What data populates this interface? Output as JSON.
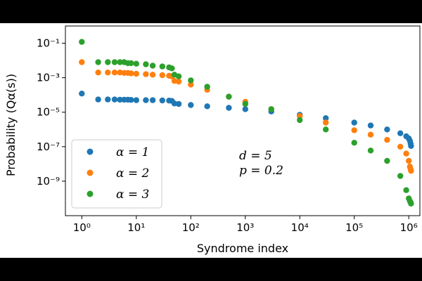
{
  "chart_data": {
    "type": "scatter",
    "xlabel": "Syndrome index",
    "ylabel": "Probability (Qα(s))",
    "x_scale": "log",
    "y_scale": "log",
    "xlim": [
      0.5,
      1600000
    ],
    "ylim": [
      1e-11,
      1.0
    ],
    "x_ticks": [
      {
        "value": 1,
        "label": "10⁰"
      },
      {
        "value": 10,
        "label": "10¹"
      },
      {
        "value": 100,
        "label": "10²"
      },
      {
        "value": 1000,
        "label": "10³"
      },
      {
        "value": 10000,
        "label": "10⁴"
      },
      {
        "value": 100000,
        "label": "10⁵"
      },
      {
        "value": 1000000,
        "label": "10⁶"
      }
    ],
    "y_ticks": [
      {
        "value": 0.1,
        "label": "10⁻¹"
      },
      {
        "value": 0.001,
        "label": "10⁻³"
      },
      {
        "value": 1e-05,
        "label": "10⁻⁵"
      },
      {
        "value": 1e-07,
        "label": "10⁻⁷"
      },
      {
        "value": 1e-09,
        "label": "10⁻⁹"
      }
    ],
    "grid": false,
    "legend_position": "lower-left",
    "annotation": [
      "d = 5",
      "p = 0.2"
    ],
    "series": [
      {
        "name": "α = 1",
        "color": "#1f77b4",
        "x": [
          1,
          2,
          3,
          4,
          5,
          6,
          7,
          8,
          10,
          15,
          20,
          30,
          40,
          45,
          50,
          60,
          100,
          200,
          500,
          1000,
          3000,
          10000,
          30000,
          100000,
          200000,
          400000,
          700000,
          900000,
          1000000,
          1050000,
          1080000,
          1100000
        ],
        "y": [
          0.00012,
          5.5e-05,
          5.5e-05,
          5.5e-05,
          5.3e-05,
          5.3e-05,
          5.3e-05,
          5.2e-05,
          5e-05,
          5e-05,
          5e-05,
          4.8e-05,
          4.7e-05,
          4.5e-05,
          3.2e-05,
          3e-05,
          2.6e-05,
          2.2e-05,
          1.8e-05,
          1.5e-05,
          1.1e-05,
          7e-06,
          4.5e-06,
          2.5e-06,
          1.7e-06,
          1e-06,
          6e-07,
          4e-07,
          3e-07,
          2.2e-07,
          1.5e-07,
          1.1e-07
        ]
      },
      {
        "name": "α = 2",
        "color": "#ff7f0e",
        "x": [
          1,
          2,
          3,
          4,
          5,
          6,
          7,
          8,
          10,
          15,
          20,
          30,
          40,
          45,
          50,
          60,
          100,
          200,
          500,
          1000,
          3000,
          10000,
          30000,
          100000,
          200000,
          400000,
          700000,
          900000,
          1000000,
          1050000,
          1080000,
          1100000
        ],
        "y": [
          0.008,
          0.002,
          0.002,
          0.002,
          0.002,
          0.0019,
          0.0019,
          0.0018,
          0.0017,
          0.0016,
          0.0015,
          0.0014,
          0.0013,
          0.0012,
          0.00065,
          0.0006,
          0.0004,
          0.0002,
          8e-05,
          4e-05,
          1.5e-05,
          6e-06,
          2.5e-06,
          9e-07,
          5e-07,
          2.5e-07,
          1e-07,
          4e-08,
          1.5e-08,
          7e-09,
          5e-09,
          4e-09
        ]
      },
      {
        "name": "α = 3",
        "color": "#2ca02c",
        "x": [
          1,
          2,
          3,
          4,
          5,
          6,
          7,
          8,
          10,
          15,
          20,
          30,
          40,
          45,
          50,
          60,
          100,
          200,
          500,
          1000,
          3000,
          10000,
          30000,
          100000,
          200000,
          400000,
          700000,
          900000,
          1000000,
          1050000,
          1080000,
          1100000
        ],
        "y": [
          0.12,
          0.008,
          0.008,
          0.008,
          0.008,
          0.008,
          0.007,
          0.007,
          0.0065,
          0.006,
          0.005,
          0.0045,
          0.004,
          0.0035,
          0.0015,
          0.0012,
          0.0007,
          0.0003,
          8e-05,
          3e-05,
          1.5e-05,
          3.5e-06,
          1e-06,
          1.7e-07,
          6e-08,
          1.5e-08,
          2e-09,
          3e-10,
          1e-10,
          7e-11,
          6e-11,
          5e-11
        ]
      }
    ]
  }
}
